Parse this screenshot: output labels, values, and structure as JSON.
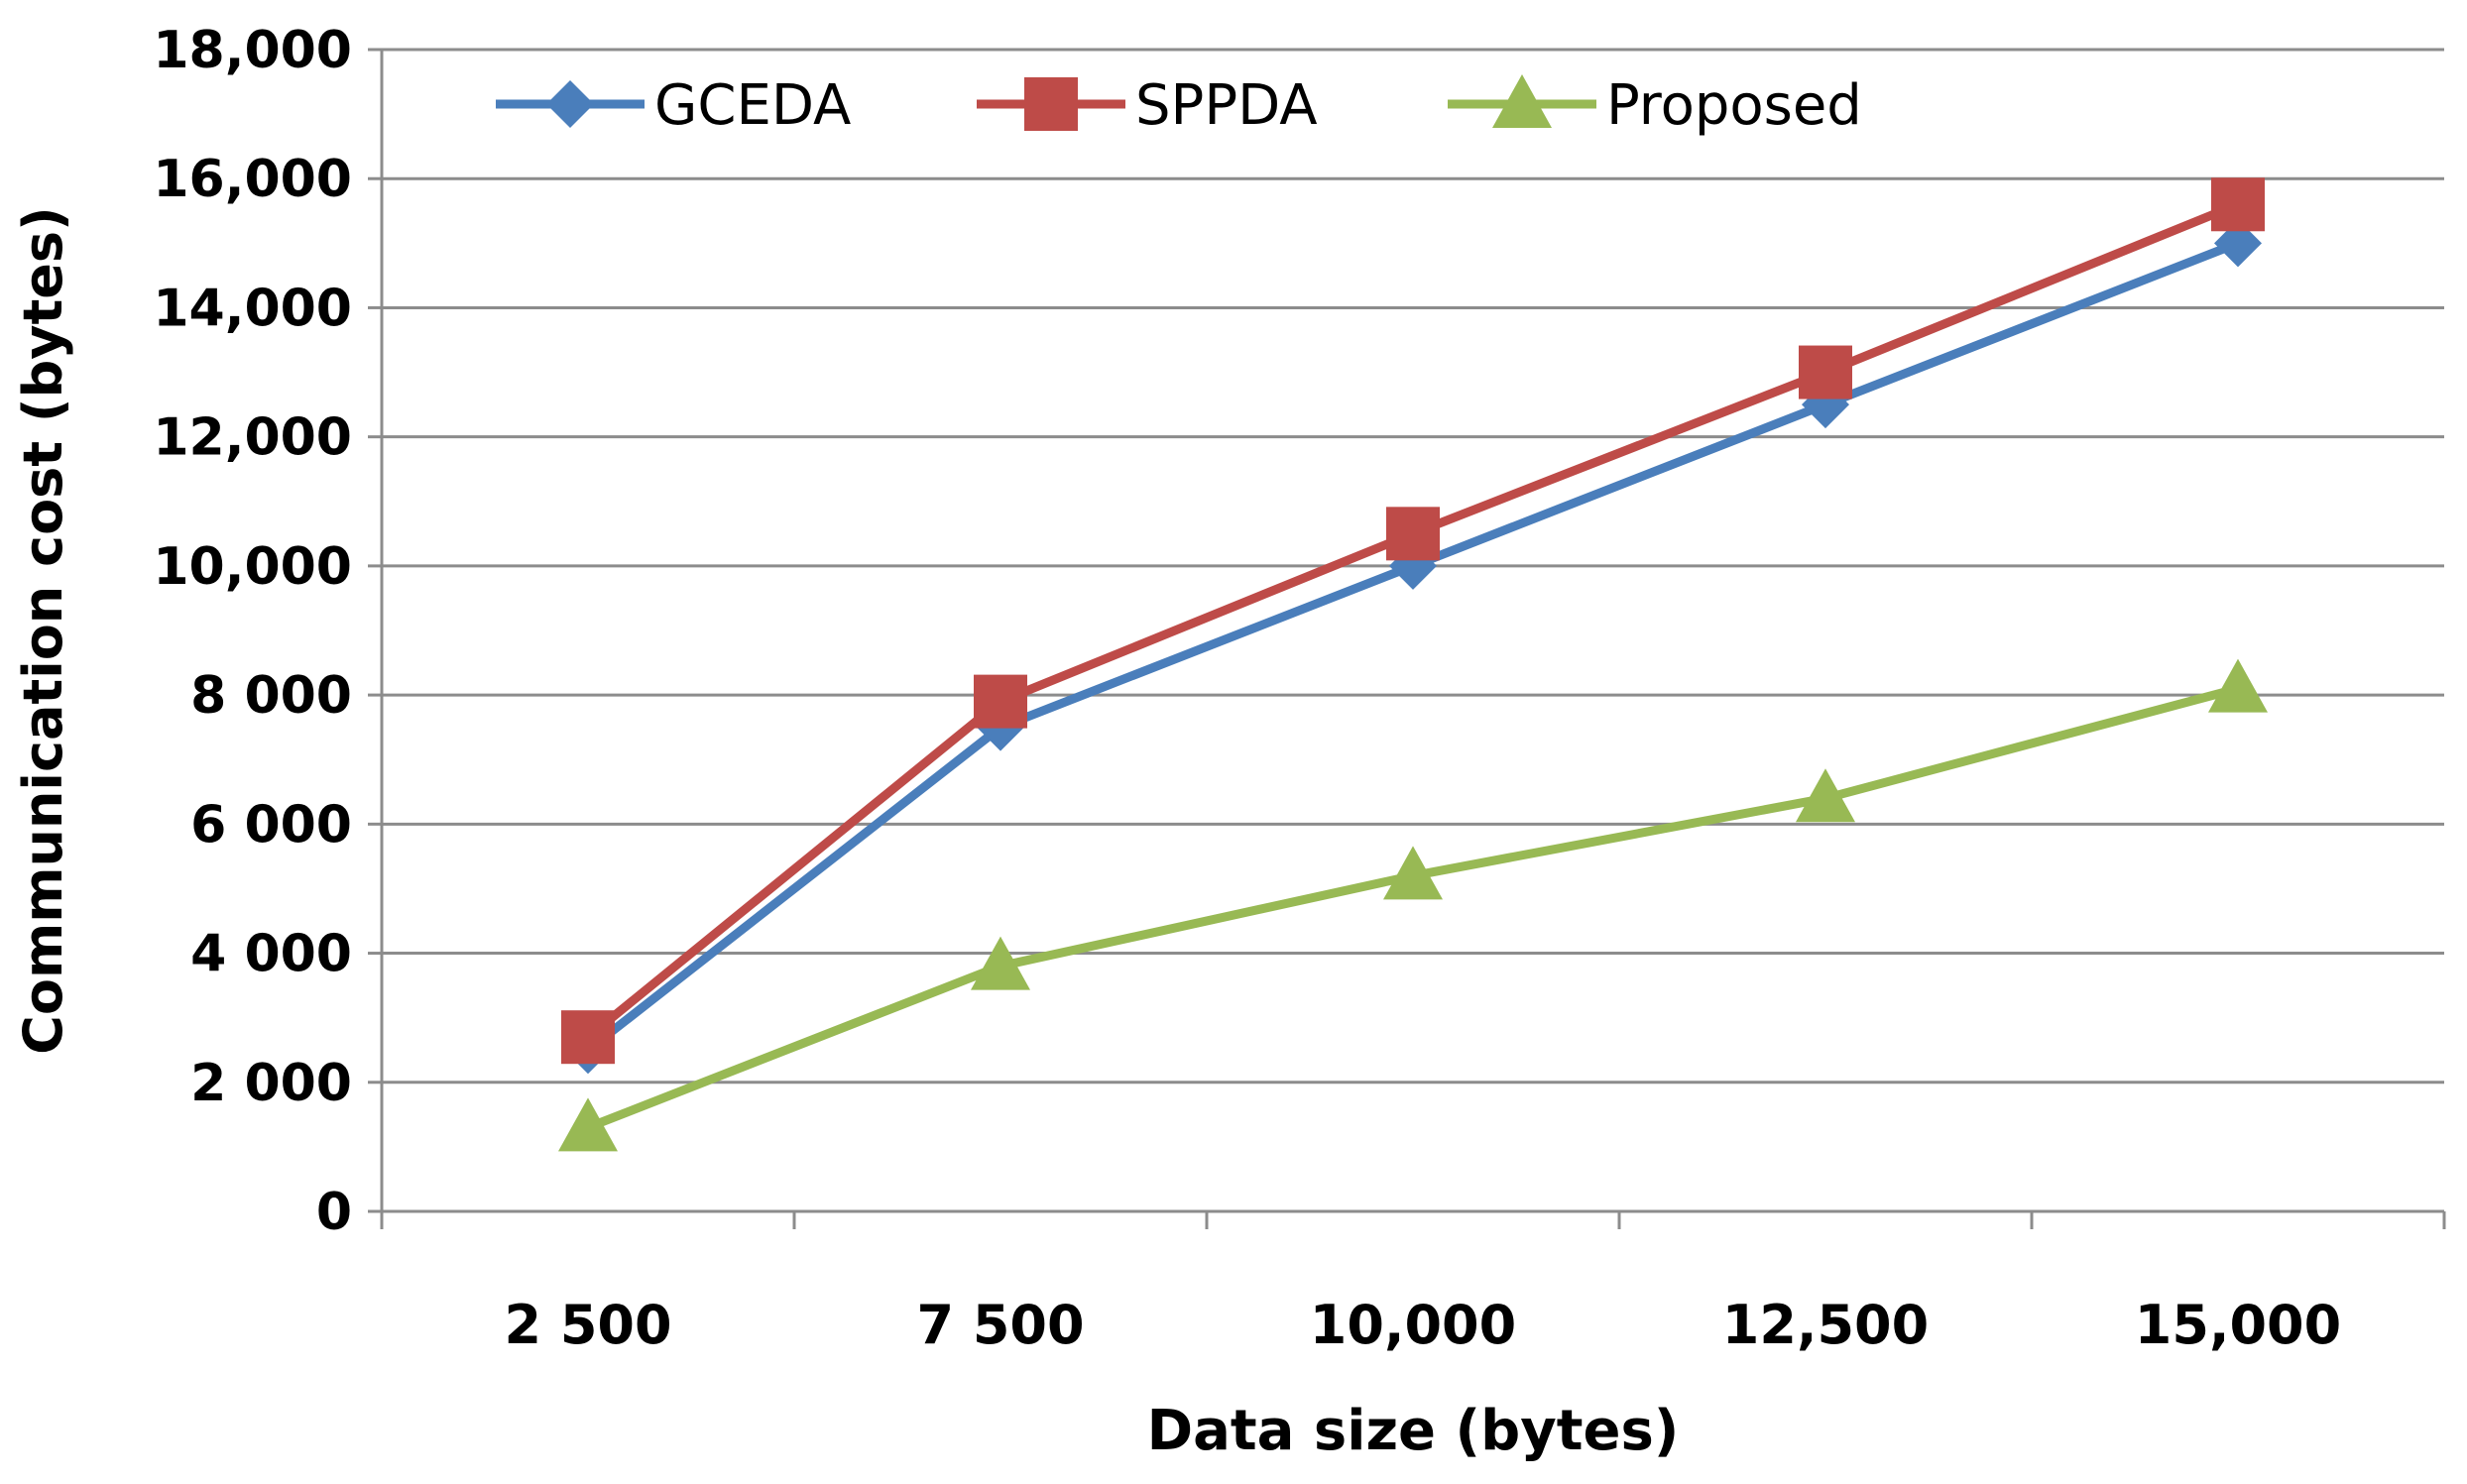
{
  "chart_data": {
    "type": "line",
    "title": "",
    "xlabel": "Data size (bytes)",
    "ylabel": "Communication cost (bytes)",
    "categories": [
      "2 500",
      "7 500",
      "10,000",
      "12,500",
      "15,000"
    ],
    "ylim": [
      0,
      18000
    ],
    "yticks": [
      0,
      2000,
      4000,
      6000,
      8000,
      10000,
      12000,
      14000,
      16000,
      18000
    ],
    "ytick_labels": [
      "0",
      "2 000",
      "4 000",
      "6 000",
      "8 000",
      "10,000",
      "12,000",
      "14,000",
      "16,000",
      "18,000"
    ],
    "grid": "horizontal",
    "legend_position": "top",
    "series": [
      {
        "name": "GCEDA",
        "values": [
          2500,
          7500,
          10000,
          12500,
          15000
        ],
        "color": "#4a7ebb",
        "marker": "diamond"
      },
      {
        "name": "SPPDA",
        "values": [
          2700,
          7900,
          10500,
          13000,
          15600
        ],
        "color": "#be4b48",
        "marker": "square"
      },
      {
        "name": "Proposed",
        "values": [
          1300,
          3800,
          5200,
          6400,
          8100
        ],
        "color": "#98b954",
        "marker": "triangle"
      }
    ]
  }
}
